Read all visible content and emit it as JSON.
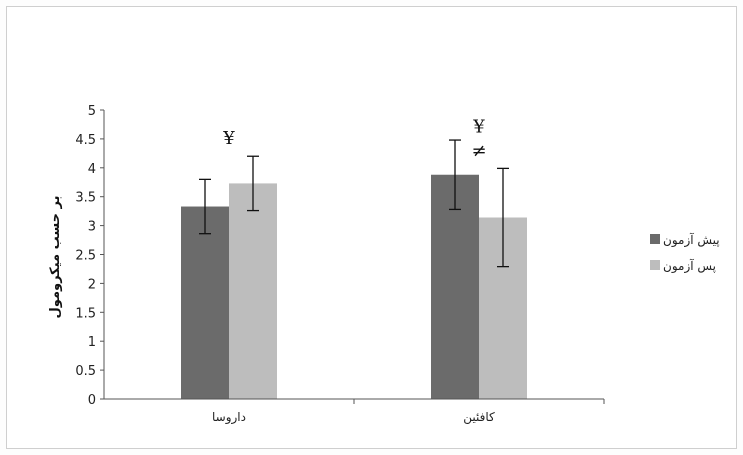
{
  "chart_data": {
    "type": "bar",
    "categories": [
      "داروسا",
      "کافئین"
    ],
    "series": [
      {
        "name": "پیش آزمون",
        "values": [
          3.33,
          3.88
        ],
        "error": [
          0.47,
          0.6
        ],
        "color": "#6b6b6b"
      },
      {
        "name": "پس آزمون",
        "values": [
          3.73,
          3.14
        ],
        "error": [
          0.47,
          0.85
        ],
        "color": "#bdbdbd"
      }
    ],
    "ylabel": "بر حسب میکرومول",
    "ylim": [
      0,
      5
    ],
    "yticks": [
      "0",
      "0.5",
      "1",
      "1.5",
      "2",
      "2.5",
      "3",
      "3.5",
      "4",
      "4.5",
      "5"
    ],
    "annotations": [
      {
        "category": 0,
        "series": 1,
        "lines": [
          "¥"
        ]
      },
      {
        "category": 1,
        "series": 1,
        "lines": [
          "¥",
          "≠"
        ]
      }
    ],
    "legend_position": "right",
    "grid": false
  }
}
